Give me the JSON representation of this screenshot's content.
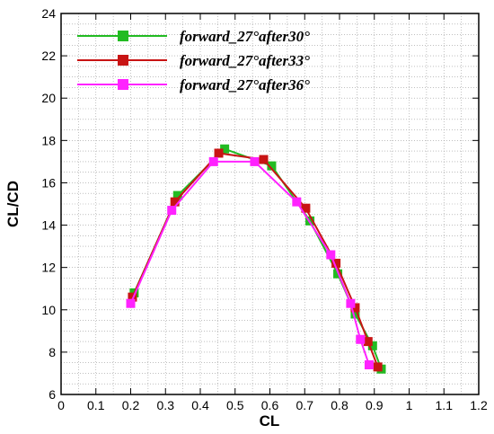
{
  "chart_data": {
    "type": "line",
    "xlabel": "CL",
    "ylabel": "CL/CD",
    "xlim": [
      0,
      1.2
    ],
    "ylim": [
      6,
      24
    ],
    "xticks": [
      "0",
      "0.1",
      "0.2",
      "0.3",
      "0.4",
      "0.5",
      "0.6",
      "0.7",
      "0.8",
      "0.9",
      "1",
      "1.1",
      "1.2"
    ],
    "yticks": [
      "6",
      "8",
      "10",
      "12",
      "14",
      "16",
      "18",
      "20",
      "22",
      "24"
    ],
    "grid": true,
    "legend_position": "top-left",
    "series": [
      {
        "name": "forward_27°after30°",
        "color": "#22bb22",
        "x": [
          0.21,
          0.335,
          0.47,
          0.605,
          0.715,
          0.795,
          0.845,
          0.895,
          0.92
        ],
        "y": [
          10.8,
          15.4,
          17.6,
          16.8,
          14.2,
          11.7,
          9.8,
          8.3,
          7.2
        ]
      },
      {
        "name": "forward_27°after33°",
        "color": "#c81414",
        "x": [
          0.205,
          0.327,
          0.453,
          0.582,
          0.703,
          0.79,
          0.845,
          0.882,
          0.91
        ],
        "y": [
          10.6,
          15.1,
          17.4,
          17.1,
          14.8,
          12.2,
          10.1,
          8.5,
          7.3
        ]
      },
      {
        "name": "forward_27°after36°",
        "color": "#ff22ff",
        "x": [
          0.2,
          0.318,
          0.438,
          0.556,
          0.677,
          0.775,
          0.832,
          0.86,
          0.885
        ],
        "y": [
          10.3,
          14.7,
          17.0,
          17.0,
          15.1,
          12.6,
          10.3,
          8.6,
          7.4
        ]
      }
    ]
  }
}
